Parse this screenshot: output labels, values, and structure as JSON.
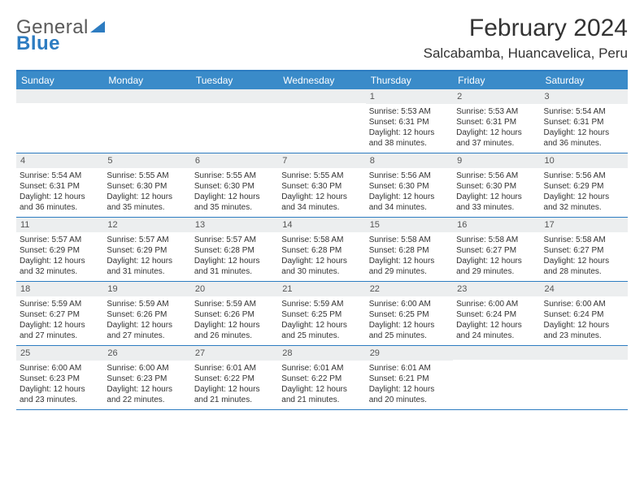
{
  "brand": {
    "part1": "General",
    "part2": "Blue"
  },
  "title": "February 2024",
  "location": "Salcabamba, Huancavelica, Peru",
  "colors": {
    "accent": "#2d7cc1",
    "header_bg": "#3a8bc9",
    "daynum_bg": "#eceeef",
    "text": "#333333",
    "logo_gray": "#5a5a5a"
  },
  "day_labels": [
    "Sunday",
    "Monday",
    "Tuesday",
    "Wednesday",
    "Thursday",
    "Friday",
    "Saturday"
  ],
  "weeks": [
    [
      {
        "n": "",
        "sr": "",
        "ss": "",
        "dl": ""
      },
      {
        "n": "",
        "sr": "",
        "ss": "",
        "dl": ""
      },
      {
        "n": "",
        "sr": "",
        "ss": "",
        "dl": ""
      },
      {
        "n": "",
        "sr": "",
        "ss": "",
        "dl": ""
      },
      {
        "n": "1",
        "sr": "5:53 AM",
        "ss": "6:31 PM",
        "dl": "12 hours and 38 minutes."
      },
      {
        "n": "2",
        "sr": "5:53 AM",
        "ss": "6:31 PM",
        "dl": "12 hours and 37 minutes."
      },
      {
        "n": "3",
        "sr": "5:54 AM",
        "ss": "6:31 PM",
        "dl": "12 hours and 36 minutes."
      }
    ],
    [
      {
        "n": "4",
        "sr": "5:54 AM",
        "ss": "6:31 PM",
        "dl": "12 hours and 36 minutes."
      },
      {
        "n": "5",
        "sr": "5:55 AM",
        "ss": "6:30 PM",
        "dl": "12 hours and 35 minutes."
      },
      {
        "n": "6",
        "sr": "5:55 AM",
        "ss": "6:30 PM",
        "dl": "12 hours and 35 minutes."
      },
      {
        "n": "7",
        "sr": "5:55 AM",
        "ss": "6:30 PM",
        "dl": "12 hours and 34 minutes."
      },
      {
        "n": "8",
        "sr": "5:56 AM",
        "ss": "6:30 PM",
        "dl": "12 hours and 34 minutes."
      },
      {
        "n": "9",
        "sr": "5:56 AM",
        "ss": "6:30 PM",
        "dl": "12 hours and 33 minutes."
      },
      {
        "n": "10",
        "sr": "5:56 AM",
        "ss": "6:29 PM",
        "dl": "12 hours and 32 minutes."
      }
    ],
    [
      {
        "n": "11",
        "sr": "5:57 AM",
        "ss": "6:29 PM",
        "dl": "12 hours and 32 minutes."
      },
      {
        "n": "12",
        "sr": "5:57 AM",
        "ss": "6:29 PM",
        "dl": "12 hours and 31 minutes."
      },
      {
        "n": "13",
        "sr": "5:57 AM",
        "ss": "6:28 PM",
        "dl": "12 hours and 31 minutes."
      },
      {
        "n": "14",
        "sr": "5:58 AM",
        "ss": "6:28 PM",
        "dl": "12 hours and 30 minutes."
      },
      {
        "n": "15",
        "sr": "5:58 AM",
        "ss": "6:28 PM",
        "dl": "12 hours and 29 minutes."
      },
      {
        "n": "16",
        "sr": "5:58 AM",
        "ss": "6:27 PM",
        "dl": "12 hours and 29 minutes."
      },
      {
        "n": "17",
        "sr": "5:58 AM",
        "ss": "6:27 PM",
        "dl": "12 hours and 28 minutes."
      }
    ],
    [
      {
        "n": "18",
        "sr": "5:59 AM",
        "ss": "6:27 PM",
        "dl": "12 hours and 27 minutes."
      },
      {
        "n": "19",
        "sr": "5:59 AM",
        "ss": "6:26 PM",
        "dl": "12 hours and 27 minutes."
      },
      {
        "n": "20",
        "sr": "5:59 AM",
        "ss": "6:26 PM",
        "dl": "12 hours and 26 minutes."
      },
      {
        "n": "21",
        "sr": "5:59 AM",
        "ss": "6:25 PM",
        "dl": "12 hours and 25 minutes."
      },
      {
        "n": "22",
        "sr": "6:00 AM",
        "ss": "6:25 PM",
        "dl": "12 hours and 25 minutes."
      },
      {
        "n": "23",
        "sr": "6:00 AM",
        "ss": "6:24 PM",
        "dl": "12 hours and 24 minutes."
      },
      {
        "n": "24",
        "sr": "6:00 AM",
        "ss": "6:24 PM",
        "dl": "12 hours and 23 minutes."
      }
    ],
    [
      {
        "n": "25",
        "sr": "6:00 AM",
        "ss": "6:23 PM",
        "dl": "12 hours and 23 minutes."
      },
      {
        "n": "26",
        "sr": "6:00 AM",
        "ss": "6:23 PM",
        "dl": "12 hours and 22 minutes."
      },
      {
        "n": "27",
        "sr": "6:01 AM",
        "ss": "6:22 PM",
        "dl": "12 hours and 21 minutes."
      },
      {
        "n": "28",
        "sr": "6:01 AM",
        "ss": "6:22 PM",
        "dl": "12 hours and 21 minutes."
      },
      {
        "n": "29",
        "sr": "6:01 AM",
        "ss": "6:21 PM",
        "dl": "12 hours and 20 minutes."
      },
      {
        "n": "",
        "sr": "",
        "ss": "",
        "dl": ""
      },
      {
        "n": "",
        "sr": "",
        "ss": "",
        "dl": ""
      }
    ]
  ],
  "labels": {
    "sunrise": "Sunrise:",
    "sunset": "Sunset:",
    "daylight": "Daylight:"
  }
}
